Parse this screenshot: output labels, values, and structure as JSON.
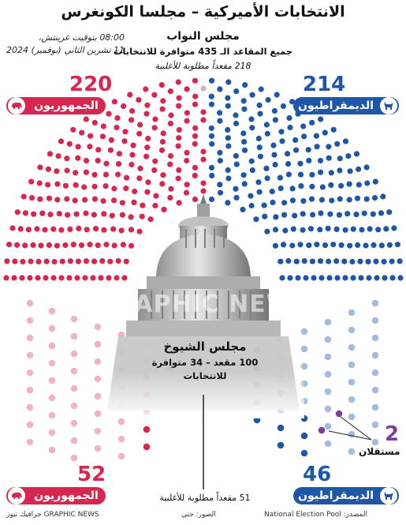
{
  "header": {
    "title": "الانتخابات الأميركية – مجلسا الكونغرس",
    "time_line1": "08:00 بتوقيت غرينتش،",
    "time_line2": "11 تشرين الثاني (نوفمبر) 2024"
  },
  "house": {
    "title": "مجلس النواب",
    "subtitle": "جميع المقاعد الـ 435 متوافرة للانتخابات",
    "majority": "218 مقعداً مطلوبة للأغلبية",
    "republicans": {
      "count": "220",
      "label": "الجمهوريون"
    },
    "democrats": {
      "count": "214",
      "label": "الديمقراطيون"
    },
    "seats": {
      "republican": 220,
      "democrat": 214,
      "undecided": 1
    }
  },
  "senate": {
    "title": "مجلس الشيوخ",
    "subtitle": "100 مقعد – 34 متوافرة للانتخابات",
    "majority": "51 مقعداً مطلوبة للأغلبية",
    "republicans": {
      "count": "52",
      "label": "الجمهوريون"
    },
    "democrats": {
      "count": "46",
      "label": "الديمقراطيون"
    },
    "independents": {
      "count": "2",
      "label": "مستقلان"
    }
  },
  "watermark": "GRAPHIC NEWS",
  "footer": {
    "source": "المصدر: National Election Pool",
    "photos": "الصور: جتي",
    "credit": "GRAPHIC NEWS جرافيك نيوز"
  },
  "colors": {
    "republican": "#d7264f",
    "democrat": "#1f56a8",
    "independent": "#7b3f9e",
    "undecided": "#b9b9b9"
  },
  "icons": {
    "republican": "elephant-icon",
    "democrat": "donkey-icon"
  }
}
